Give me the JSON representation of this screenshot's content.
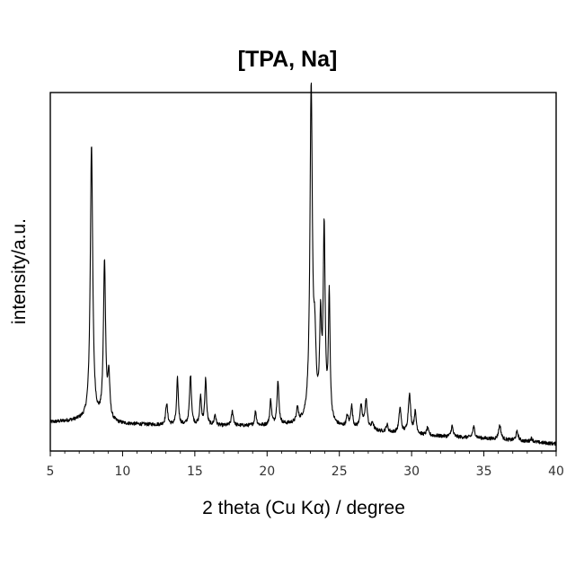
{
  "chart_data": {
    "type": "line",
    "title": "[TPA, Na]",
    "xlabel": "2 theta (Cu Kα) / degree",
    "ylabel": "intensity/a.u.",
    "xlim": [
      5,
      40
    ],
    "ylim": [
      0,
      100
    ],
    "x_ticks": [
      "5",
      "10",
      "15",
      "20",
      "25",
      "30",
      "35",
      "40"
    ],
    "y_ticks_shown": false,
    "grid": false,
    "baseline": {
      "x": [
        5,
        7,
        10,
        15,
        20,
        23,
        25,
        30,
        35,
        40
      ],
      "y": [
        8,
        8.5,
        7.5,
        7,
        7,
        7.5,
        6.5,
        4.5,
        3.5,
        2
      ]
    },
    "peaks": [
      {
        "x": 7.85,
        "height": 77,
        "width": 0.1
      },
      {
        "x": 8.75,
        "height": 44,
        "width": 0.09
      },
      {
        "x": 9.05,
        "height": 12,
        "width": 0.08
      },
      {
        "x": 13.05,
        "height": 6,
        "width": 0.08
      },
      {
        "x": 13.8,
        "height": 13,
        "width": 0.07
      },
      {
        "x": 14.7,
        "height": 14,
        "width": 0.08
      },
      {
        "x": 15.4,
        "height": 8,
        "width": 0.07
      },
      {
        "x": 15.75,
        "height": 13,
        "width": 0.07
      },
      {
        "x": 16.4,
        "height": 3,
        "width": 0.07
      },
      {
        "x": 17.6,
        "height": 4,
        "width": 0.08
      },
      {
        "x": 19.2,
        "height": 4,
        "width": 0.07
      },
      {
        "x": 20.25,
        "height": 7,
        "width": 0.07
      },
      {
        "x": 20.75,
        "height": 12,
        "width": 0.08
      },
      {
        "x": 22.1,
        "height": 4,
        "width": 0.07
      },
      {
        "x": 23.05,
        "height": 92,
        "width": 0.1
      },
      {
        "x": 23.3,
        "height": 18,
        "width": 0.1
      },
      {
        "x": 23.7,
        "height": 26,
        "width": 0.08
      },
      {
        "x": 23.95,
        "height": 53,
        "width": 0.08
      },
      {
        "x": 24.3,
        "height": 35,
        "width": 0.07
      },
      {
        "x": 25.55,
        "height": 3,
        "width": 0.08
      },
      {
        "x": 25.85,
        "height": 6,
        "width": 0.08
      },
      {
        "x": 26.5,
        "height": 6,
        "width": 0.1
      },
      {
        "x": 26.85,
        "height": 8,
        "width": 0.1
      },
      {
        "x": 27.3,
        "height": 2,
        "width": 0.08
      },
      {
        "x": 28.3,
        "height": 2,
        "width": 0.08
      },
      {
        "x": 29.2,
        "height": 7,
        "width": 0.09
      },
      {
        "x": 29.85,
        "height": 11,
        "width": 0.1
      },
      {
        "x": 30.25,
        "height": 6,
        "width": 0.09
      },
      {
        "x": 31.1,
        "height": 2,
        "width": 0.08
      },
      {
        "x": 32.8,
        "height": 3,
        "width": 0.08
      },
      {
        "x": 34.3,
        "height": 3,
        "width": 0.09
      },
      {
        "x": 36.1,
        "height": 4,
        "width": 0.1
      },
      {
        "x": 37.3,
        "height": 2.5,
        "width": 0.1
      },
      {
        "x": 38.3,
        "height": 1,
        "width": 0.1
      }
    ]
  }
}
